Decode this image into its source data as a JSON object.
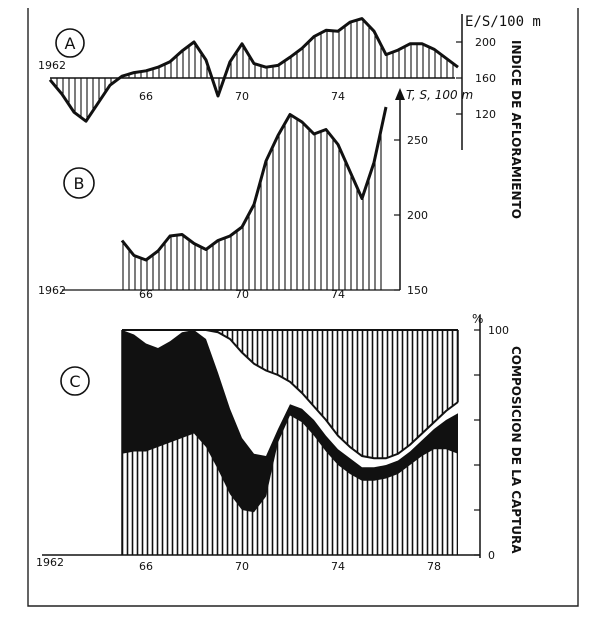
{
  "chart_data": [
    {
      "panel_label": "A",
      "type": "area",
      "x_start_label": "1962",
      "x_ticks": [
        "66",
        "70",
        "74"
      ],
      "y_ticks": [
        200,
        160,
        120
      ],
      "unit_label": "E/S/100 m",
      "side_label": "INDICE DE AFLORAMIENTO",
      "baseline": 160,
      "series": [
        {
          "x": [
            1962.0,
            1962.5,
            1963.0,
            1963.5,
            1964.0,
            1964.5,
            1965.0,
            1965.5,
            1966.0,
            1966.5,
            1967.0,
            1967.5,
            1968.0,
            1968.5,
            1969.0,
            1969.5,
            1970.0,
            1970.5,
            1971.0,
            1971.5,
            1972.0,
            1972.5,
            1973.0,
            1973.5,
            1974.0,
            1974.5,
            1975.0,
            1975.5,
            1976.0,
            1976.5,
            1977.0,
            1977.5,
            1978.0,
            1978.5,
            1979.0
          ],
          "values": [
            158,
            142,
            122,
            112,
            132,
            152,
            162,
            166,
            168,
            172,
            178,
            190,
            200,
            180,
            140,
            178,
            198,
            176,
            172,
            174,
            183,
            193,
            206,
            213,
            212,
            222,
            226,
            212,
            186,
            191,
            198,
            198,
            192,
            182,
            172
          ]
        }
      ]
    },
    {
      "panel_label": "B",
      "type": "area",
      "x_start_label": "1962",
      "x_ticks": [
        "66",
        "70",
        "74"
      ],
      "y_ticks": [
        250,
        200,
        150
      ],
      "unit_label": "T, S, 100 m",
      "series": [
        {
          "x": [
            1965.0,
            1965.5,
            1966.0,
            1966.5,
            1967.0,
            1967.5,
            1968.0,
            1968.5,
            1969.0,
            1969.5,
            1970.0,
            1970.5,
            1971.0,
            1971.5,
            1972.0,
            1972.5,
            1973.0,
            1973.5,
            1974.0,
            1974.5,
            1975.0,
            1975.5,
            1976.0
          ],
          "values": [
            183,
            173,
            170,
            176,
            186,
            187,
            181,
            177,
            183,
            186,
            192,
            207,
            236,
            253,
            267,
            262,
            254,
            257,
            247,
            229,
            211,
            235,
            272
          ]
        }
      ]
    },
    {
      "panel_label": "C",
      "type": "area",
      "x_start_label": "1962",
      "x_ticks": [
        "66",
        "70",
        "74",
        "78"
      ],
      "y_unit": "%",
      "y_ticks": [
        100,
        0
      ],
      "side_label": "COMPOSICION DE LA CAPTURA",
      "series": [
        {
          "pattern": "hatched",
          "x": [
            1965.0,
            1965.5,
            1966.0,
            1966.5,
            1967.0,
            1967.5,
            1968.0,
            1968.5,
            1969.0,
            1969.5,
            1970.0,
            1970.5,
            1971.0,
            1971.5,
            1972.0,
            1972.5,
            1973.0,
            1973.5,
            1974.0,
            1974.5,
            1975.0,
            1975.5,
            1976.0,
            1976.5,
            1977.0,
            1977.5,
            1978.0,
            1978.5,
            1979.0
          ],
          "values": [
            45,
            46,
            46,
            48,
            50,
            52,
            54,
            48,
            38,
            27,
            20,
            19,
            26,
            50,
            62,
            59,
            53,
            46,
            40,
            36,
            33,
            33,
            34,
            36,
            40,
            44,
            47,
            47,
            45
          ]
        },
        {
          "pattern": "black",
          "x": [
            1965.0,
            1965.5,
            1966.0,
            1966.5,
            1967.0,
            1967.5,
            1968.0,
            1968.5,
            1969.0,
            1969.5,
            1970.0,
            1970.5,
            1971.0,
            1971.5,
            1972.0,
            1972.5,
            1973.0,
            1973.5,
            1974.0,
            1974.5,
            1975.0,
            1975.5,
            1976.0,
            1976.5,
            1977.0,
            1977.5,
            1978.0,
            1978.5,
            1979.0
          ],
          "values": [
            100,
            98,
            94,
            92,
            95,
            99,
            100,
            96,
            81,
            65,
            52,
            45,
            44,
            56,
            67,
            65,
            60,
            53,
            47,
            43,
            39,
            39,
            40,
            42,
            46,
            51,
            56,
            60,
            63
          ]
        },
        {
          "pattern": "white",
          "x": [
            1965.0,
            1965.5,
            1966.0,
            1966.5,
            1967.0,
            1967.5,
            1968.0,
            1968.5,
            1969.0,
            1969.5,
            1970.0,
            1970.5,
            1971.0,
            1971.5,
            1972.0,
            1972.5,
            1973.0,
            1973.5,
            1974.0,
            1974.5,
            1975.0,
            1975.5,
            1976.0,
            1976.5,
            1977.0,
            1977.5,
            1978.0,
            1978.5,
            1979.0
          ],
          "values": [
            100,
            100,
            100,
            100,
            100,
            100,
            100,
            100,
            99,
            96,
            90,
            85,
            82,
            80,
            77,
            72,
            66,
            60,
            53,
            48,
            44,
            43,
            43,
            45,
            49,
            54,
            59,
            64,
            68
          ]
        }
      ]
    }
  ]
}
